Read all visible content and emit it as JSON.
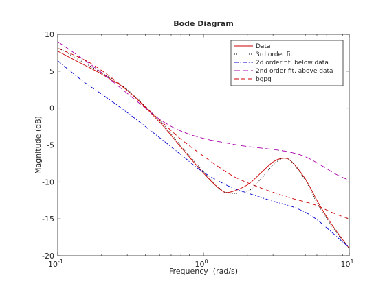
{
  "chart_data": {
    "type": "line",
    "title": "Bode Diagram",
    "xlabel": "Frequency  (rad/s)",
    "ylabel": "Magnitude (dB)",
    "xscale": "log",
    "xlim": [
      0.1,
      10
    ],
    "ylim": [
      -20,
      10
    ],
    "x_ticks": [
      0.1,
      1,
      10
    ],
    "x_tick_labels": [
      {
        "base": "10",
        "exp": "-1"
      },
      {
        "base": "10",
        "exp": "0"
      },
      {
        "base": "10",
        "exp": "1"
      }
    ],
    "y_ticks": [
      -20,
      -15,
      -10,
      -5,
      0,
      5,
      10
    ],
    "y_tick_labels": [
      "-20",
      "-15",
      "-10",
      "-5",
      "0",
      "5",
      "10"
    ],
    "grid": false,
    "legend_position": "top-right",
    "series": [
      {
        "name": "Data",
        "color": "#cc0000",
        "dash": "solid",
        "x": [
          0.1,
          0.15,
          0.2,
          0.3,
          0.5,
          0.7,
          1.0,
          1.3,
          1.5,
          2.0,
          2.5,
          3.0,
          3.5,
          4.0,
          5.0,
          6.0,
          7.0,
          8.0,
          10.0
        ],
        "y": [
          7.7,
          5.9,
          4.6,
          2.4,
          -1.9,
          -5.3,
          -8.8,
          -11.0,
          -11.4,
          -10.4,
          -8.7,
          -7.3,
          -6.8,
          -7.2,
          -9.6,
          -12.5,
          -14.7,
          -16.4,
          -19.0
        ]
      },
      {
        "name": "3rd order fit",
        "color": "#000000",
        "dash": "dotted",
        "x": [
          0.1,
          0.15,
          0.2,
          0.3,
          0.5,
          0.7,
          1.0,
          1.3,
          1.5,
          2.0,
          2.5,
          3.0,
          3.5,
          4.0,
          5.0,
          6.0,
          7.0,
          8.0,
          10.0
        ],
        "y": [
          8.2,
          6.2,
          4.8,
          2.5,
          -1.7,
          -5.1,
          -8.6,
          -10.9,
          -11.5,
          -11.3,
          -9.5,
          -7.7,
          -6.8,
          -7.2,
          -9.8,
          -12.8,
          -14.9,
          -16.6,
          -19.0
        ]
      },
      {
        "name": "2d order fit, below data",
        "color": "#0000cc",
        "dash": "dashdot",
        "x": [
          0.1,
          0.15,
          0.2,
          0.3,
          0.5,
          0.7,
          1.0,
          1.5,
          2.0,
          3.0,
          4.0,
          5.0,
          6.0,
          7.0,
          8.0,
          10.0
        ],
        "y": [
          6.4,
          3.6,
          1.9,
          -0.6,
          -4.0,
          -6.3,
          -8.7,
          -10.6,
          -11.5,
          -12.6,
          -13.3,
          -14.1,
          -15.1,
          -16.2,
          -17.2,
          -18.9
        ]
      },
      {
        "name": "2nd order fit, above data",
        "color": "#aa00aa",
        "dash": "longdash",
        "x": [
          0.1,
          0.15,
          0.2,
          0.3,
          0.5,
          0.7,
          1.0,
          1.5,
          2.0,
          3.0,
          4.0,
          5.0,
          6.0,
          7.0,
          8.0,
          10.0
        ],
        "y": [
          9.0,
          6.6,
          4.8,
          2.0,
          -1.5,
          -3.1,
          -4.1,
          -4.8,
          -5.2,
          -5.6,
          -6.0,
          -6.6,
          -7.4,
          -8.2,
          -8.9,
          -9.8
        ]
      },
      {
        "name": "bgpg",
        "color": "#cc0000",
        "dash": "dashed",
        "x": [
          0.1,
          0.15,
          0.2,
          0.3,
          0.5,
          0.7,
          1.0,
          1.5,
          2.0,
          3.0,
          4.0,
          5.0,
          6.0,
          7.0,
          8.0,
          10.0
        ],
        "y": [
          8.1,
          6.6,
          5.1,
          2.4,
          -1.6,
          -4.2,
          -6.5,
          -8.9,
          -10.1,
          -11.4,
          -12.2,
          -12.7,
          -13.2,
          -13.8,
          -14.3,
          -15.0
        ]
      }
    ]
  }
}
